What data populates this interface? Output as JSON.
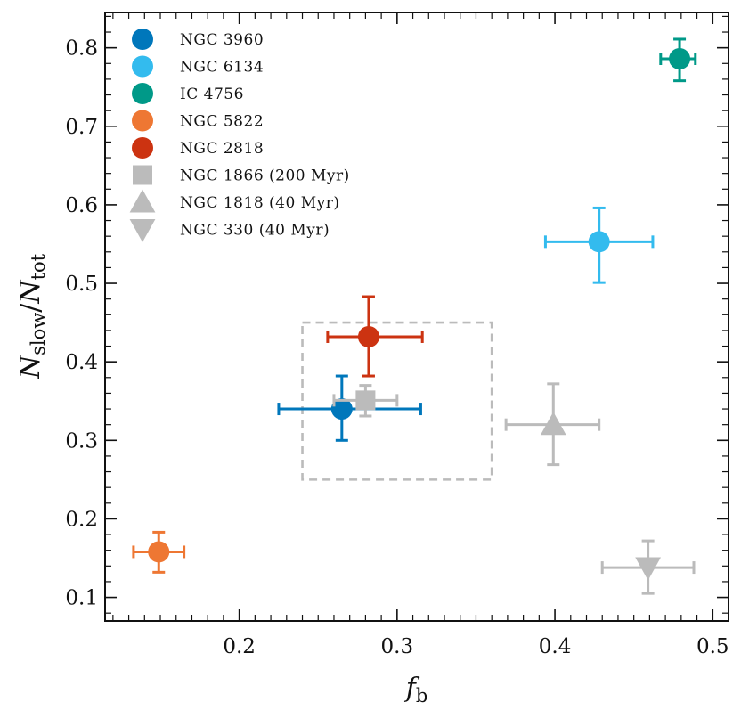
{
  "chart_data": {
    "type": "scatter",
    "xlabel": {
      "main": "f",
      "sub": "b"
    },
    "ylabel": {
      "main_a": "N",
      "sub_a": "slow",
      "sep": "/",
      "main_b": "N",
      "sub_b": "tot"
    },
    "xlim": [
      0.115,
      0.51
    ],
    "ylim": [
      0.07,
      0.845
    ],
    "xticks": [
      0.2,
      0.3,
      0.4,
      0.5
    ],
    "xtick_labels": [
      "0.2",
      "0.3",
      "0.4",
      "0.5"
    ],
    "yticks": [
      0.1,
      0.2,
      0.3,
      0.4,
      0.5,
      0.6,
      0.7,
      0.8
    ],
    "ytick_labels": [
      "0.1",
      "0.2",
      "0.3",
      "0.4",
      "0.5",
      "0.6",
      "0.7",
      "0.8"
    ],
    "grid": false,
    "legend_position": "top-left",
    "highlight_box": {
      "x_range": [
        0.24,
        0.36
      ],
      "y_range": [
        0.25,
        0.45
      ],
      "color": "#bbbbbb"
    },
    "series": [
      {
        "name": "NGC 3960",
        "marker": "circle",
        "color": "#0077bb",
        "x": 0.265,
        "y": 0.34,
        "xerr": [
          0.04,
          0.05
        ],
        "yerr": [
          0.04,
          0.042
        ]
      },
      {
        "name": "NGC 6134",
        "marker": "circle",
        "color": "#33bbee",
        "x": 0.428,
        "y": 0.553,
        "xerr": [
          0.034,
          0.034
        ],
        "yerr": [
          0.052,
          0.043
        ]
      },
      {
        "name": "IC 4756",
        "marker": "circle",
        "color": "#009988",
        "x": 0.479,
        "y": 0.786,
        "xerr": [
          0.012,
          0.01
        ],
        "yerr": [
          0.028,
          0.025
        ]
      },
      {
        "name": "NGC 5822",
        "marker": "circle",
        "color": "#ee7733",
        "x": 0.149,
        "y": 0.158,
        "xerr": [
          0.016,
          0.016
        ],
        "yerr": [
          0.026,
          0.025
        ]
      },
      {
        "name": "NGC 2818",
        "marker": "circle",
        "color": "#cc3311",
        "x": 0.282,
        "y": 0.432,
        "xerr": [
          0.026,
          0.034
        ],
        "yerr": [
          0.05,
          0.051
        ]
      },
      {
        "name": "NGC 1866 (200 Myr)",
        "marker": "square",
        "color": "#bbbbbb",
        "x": 0.28,
        "y": 0.351,
        "xerr": [
          0.02,
          0.02
        ],
        "yerr": [
          0.02,
          0.019
        ]
      },
      {
        "name": "NGC 1818 (40 Myr)",
        "marker": "triangle-up",
        "color": "#bbbbbb",
        "x": 0.399,
        "y": 0.32,
        "xerr": [
          0.03,
          0.029
        ],
        "yerr": [
          0.051,
          0.052
        ]
      },
      {
        "name": "NGC 330 (40 Myr)",
        "marker": "triangle-down",
        "color": "#bbbbbb",
        "x": 0.459,
        "y": 0.138,
        "xerr": [
          0.029,
          0.029
        ],
        "yerr": [
          0.033,
          0.034
        ]
      }
    ],
    "legend_order": [
      "NGC 3960",
      "NGC 6134",
      "IC 4756",
      "NGC 5822",
      "NGC 2818",
      "NGC 1866 (200 Myr)",
      "NGC 1818 (40 Myr)",
      "NGC 330 (40 Myr)"
    ]
  }
}
